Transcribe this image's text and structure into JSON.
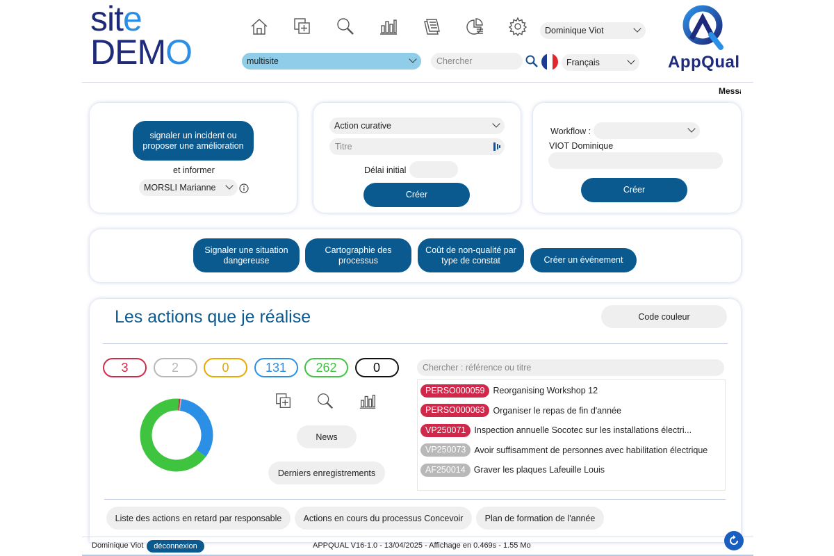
{
  "header": {
    "logo_line1": "site",
    "logo_line2": "DEMO",
    "icons": [
      "home-icon",
      "add-document-icon",
      "search-icon",
      "bar-chart-icon",
      "documents-icon",
      "dashboard-icon",
      "gear-icon"
    ],
    "user_select": "Dominique Viot",
    "site_select": "multisite",
    "search_placeholder": "Chercher",
    "language_select": "Français",
    "brand": "AppQual",
    "ticker": "Messages"
  },
  "incident_card": {
    "button": "signaler un incident ou proposer une amélioration",
    "inform_label": "et informer",
    "person_select": "MORSLI Marianne"
  },
  "action_card": {
    "type_select": "Action curative",
    "title_placeholder": "Titre",
    "delay_label": "Délai initial",
    "create_button": "Créer"
  },
  "workflow_card": {
    "workflow_label": "Workflow :",
    "workflow_select": "",
    "person": "VIOT Dominique",
    "create_button": "Créer"
  },
  "shortcuts": [
    "Signaler une situation dangereuse",
    "Cartographie des processus",
    "Coût de non-qualité par type de constat",
    "Créer un événement"
  ],
  "actions": {
    "title": "Les actions que je réalise",
    "color_code_button": "Code couleur",
    "counters": [
      {
        "value": "3",
        "color": "#d0284a"
      },
      {
        "value": "2",
        "color": "#b8b8b8"
      },
      {
        "value": "0",
        "color": "#e8a800"
      },
      {
        "value": "131",
        "color": "#2b8fe6"
      },
      {
        "value": "262",
        "color": "#3ec43e"
      },
      {
        "value": "0",
        "color": "#111111"
      }
    ],
    "news_button": "News",
    "recent_button": "Derniers enregistrements",
    "list_search_placeholder": "Chercher : référence ou titre",
    "items": [
      {
        "ref": "PERSO000059",
        "title": "Reorganising Workshop 12",
        "color": "#d0284a"
      },
      {
        "ref": "PERSO000063",
        "title": "Organiser le repas de fin d'année",
        "color": "#d0284a"
      },
      {
        "ref": "VP250071",
        "title": "Inspection annuelle Socotec sur les installations électri...",
        "color": "#d0284a"
      },
      {
        "ref": "VP250073",
        "title": "Avoir suffisamment de personnes avec habilitation électrique",
        "color": "#b8b8b8"
      },
      {
        "ref": "AF250014",
        "title": "Graver les plaques Lafeuille Louis",
        "color": "#b8b8b8"
      }
    ],
    "reports": [
      "Liste des actions en retard par responsable",
      "Actions en cours du processus Concevoir",
      "Plan de formation de l'année"
    ]
  },
  "chart_data": {
    "type": "pie",
    "categories": [
      "Rouge",
      "Gris",
      "Orange",
      "Bleu",
      "Vert",
      "Noir"
    ],
    "values": [
      3,
      2,
      0,
      131,
      262,
      0
    ],
    "colors": [
      "#d0284a",
      "#b8b8b8",
      "#e8a800",
      "#2b8fe6",
      "#3ec43e",
      "#111111"
    ],
    "title": ""
  },
  "footer": {
    "user": "Dominique Viot",
    "logout": "déconnexion",
    "info": "APPQUAL V16-1.0 - 13/04/2025 - Affichage en 0.469s - 1.55 Mo"
  }
}
